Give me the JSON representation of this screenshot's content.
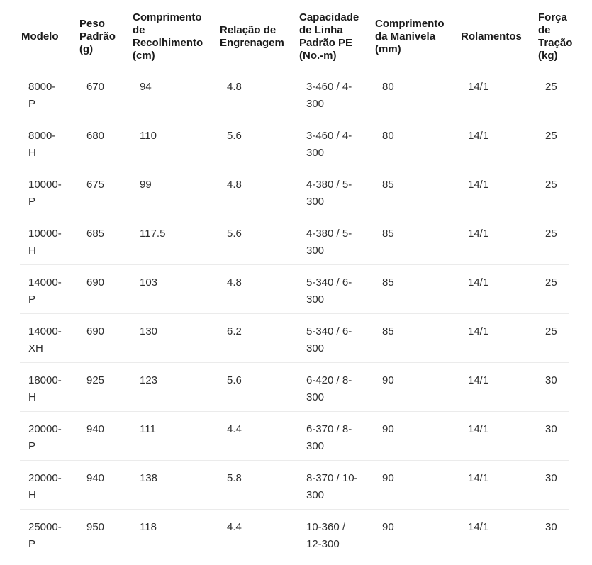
{
  "chart_data": {
    "type": "table",
    "title": "",
    "columns": [
      "Modelo",
      "Peso Padrão (g)",
      "Comprimento de Recolhimento (cm)",
      "Relação de Engrenagem",
      "Capacidade de Linha Padrão PE (No.-m)",
      "Comprimento da Manivela (mm)",
      "Rolamentos",
      "Força de Tração (kg)"
    ],
    "rows": [
      [
        "8000-P",
        "670",
        "94",
        "4.8",
        "3-460 / 4-300",
        "80",
        "14/1",
        "25"
      ],
      [
        "8000-H",
        "680",
        "110",
        "5.6",
        "3-460 / 4-300",
        "80",
        "14/1",
        "25"
      ],
      [
        "10000-P",
        "675",
        "99",
        "4.8",
        "4-380 / 5-300",
        "85",
        "14/1",
        "25"
      ],
      [
        "10000-H",
        "685",
        "117.5",
        "5.6",
        "4-380 / 5-300",
        "85",
        "14/1",
        "25"
      ],
      [
        "14000-P",
        "690",
        "103",
        "4.8",
        "5-340 / 6-300",
        "85",
        "14/1",
        "25"
      ],
      [
        "14000-XH",
        "690",
        "130",
        "6.2",
        "5-340 / 6-300",
        "85",
        "14/1",
        "25"
      ],
      [
        "18000-H",
        "925",
        "123",
        "5.6",
        "6-420 / 8-300",
        "90",
        "14/1",
        "30"
      ],
      [
        "20000-P",
        "940",
        "111",
        "4.4",
        "6-370 / 8-300",
        "90",
        "14/1",
        "30"
      ],
      [
        "20000-H",
        "940",
        "138",
        "5.8",
        "8-370 / 10-300",
        "90",
        "14/1",
        "30"
      ],
      [
        "25000-P",
        "950",
        "118",
        "4.4",
        "10-360 / 12-300",
        "90",
        "14/1",
        "30"
      ]
    ],
    "layout": {
      "grid": "horizontal row dividers only",
      "divider_color": "#ebebeb",
      "header_divider_color": "#d6d6d6",
      "header_text_color": "#1b1b1b",
      "body_text_color": "#2f2f2f",
      "background": "#ffffff"
    }
  }
}
